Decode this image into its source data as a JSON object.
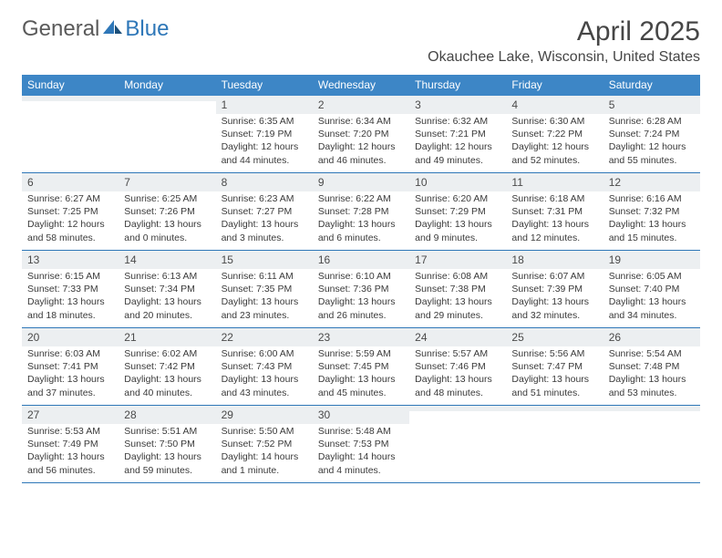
{
  "brand": {
    "part1": "General",
    "part2": "Blue"
  },
  "title": "April 2025",
  "location": "Okauchee Lake, Wisconsin, United States",
  "colors": {
    "header_bg": "#3d86c6",
    "rule": "#2e77b8",
    "daynum_bg": "#eceff1",
    "text": "#3a3a3a"
  },
  "day_labels": [
    "Sunday",
    "Monday",
    "Tuesday",
    "Wednesday",
    "Thursday",
    "Friday",
    "Saturday"
  ],
  "weeks": [
    [
      {
        "n": "",
        "sr": "",
        "ss": "",
        "dl": ""
      },
      {
        "n": "",
        "sr": "",
        "ss": "",
        "dl": ""
      },
      {
        "n": "1",
        "sr": "Sunrise: 6:35 AM",
        "ss": "Sunset: 7:19 PM",
        "dl": "Daylight: 12 hours and 44 minutes."
      },
      {
        "n": "2",
        "sr": "Sunrise: 6:34 AM",
        "ss": "Sunset: 7:20 PM",
        "dl": "Daylight: 12 hours and 46 minutes."
      },
      {
        "n": "3",
        "sr": "Sunrise: 6:32 AM",
        "ss": "Sunset: 7:21 PM",
        "dl": "Daylight: 12 hours and 49 minutes."
      },
      {
        "n": "4",
        "sr": "Sunrise: 6:30 AM",
        "ss": "Sunset: 7:22 PM",
        "dl": "Daylight: 12 hours and 52 minutes."
      },
      {
        "n": "5",
        "sr": "Sunrise: 6:28 AM",
        "ss": "Sunset: 7:24 PM",
        "dl": "Daylight: 12 hours and 55 minutes."
      }
    ],
    [
      {
        "n": "6",
        "sr": "Sunrise: 6:27 AM",
        "ss": "Sunset: 7:25 PM",
        "dl": "Daylight: 12 hours and 58 minutes."
      },
      {
        "n": "7",
        "sr": "Sunrise: 6:25 AM",
        "ss": "Sunset: 7:26 PM",
        "dl": "Daylight: 13 hours and 0 minutes."
      },
      {
        "n": "8",
        "sr": "Sunrise: 6:23 AM",
        "ss": "Sunset: 7:27 PM",
        "dl": "Daylight: 13 hours and 3 minutes."
      },
      {
        "n": "9",
        "sr": "Sunrise: 6:22 AM",
        "ss": "Sunset: 7:28 PM",
        "dl": "Daylight: 13 hours and 6 minutes."
      },
      {
        "n": "10",
        "sr": "Sunrise: 6:20 AM",
        "ss": "Sunset: 7:29 PM",
        "dl": "Daylight: 13 hours and 9 minutes."
      },
      {
        "n": "11",
        "sr": "Sunrise: 6:18 AM",
        "ss": "Sunset: 7:31 PM",
        "dl": "Daylight: 13 hours and 12 minutes."
      },
      {
        "n": "12",
        "sr": "Sunrise: 6:16 AM",
        "ss": "Sunset: 7:32 PM",
        "dl": "Daylight: 13 hours and 15 minutes."
      }
    ],
    [
      {
        "n": "13",
        "sr": "Sunrise: 6:15 AM",
        "ss": "Sunset: 7:33 PM",
        "dl": "Daylight: 13 hours and 18 minutes."
      },
      {
        "n": "14",
        "sr": "Sunrise: 6:13 AM",
        "ss": "Sunset: 7:34 PM",
        "dl": "Daylight: 13 hours and 20 minutes."
      },
      {
        "n": "15",
        "sr": "Sunrise: 6:11 AM",
        "ss": "Sunset: 7:35 PM",
        "dl": "Daylight: 13 hours and 23 minutes."
      },
      {
        "n": "16",
        "sr": "Sunrise: 6:10 AM",
        "ss": "Sunset: 7:36 PM",
        "dl": "Daylight: 13 hours and 26 minutes."
      },
      {
        "n": "17",
        "sr": "Sunrise: 6:08 AM",
        "ss": "Sunset: 7:38 PM",
        "dl": "Daylight: 13 hours and 29 minutes."
      },
      {
        "n": "18",
        "sr": "Sunrise: 6:07 AM",
        "ss": "Sunset: 7:39 PM",
        "dl": "Daylight: 13 hours and 32 minutes."
      },
      {
        "n": "19",
        "sr": "Sunrise: 6:05 AM",
        "ss": "Sunset: 7:40 PM",
        "dl": "Daylight: 13 hours and 34 minutes."
      }
    ],
    [
      {
        "n": "20",
        "sr": "Sunrise: 6:03 AM",
        "ss": "Sunset: 7:41 PM",
        "dl": "Daylight: 13 hours and 37 minutes."
      },
      {
        "n": "21",
        "sr": "Sunrise: 6:02 AM",
        "ss": "Sunset: 7:42 PM",
        "dl": "Daylight: 13 hours and 40 minutes."
      },
      {
        "n": "22",
        "sr": "Sunrise: 6:00 AM",
        "ss": "Sunset: 7:43 PM",
        "dl": "Daylight: 13 hours and 43 minutes."
      },
      {
        "n": "23",
        "sr": "Sunrise: 5:59 AM",
        "ss": "Sunset: 7:45 PM",
        "dl": "Daylight: 13 hours and 45 minutes."
      },
      {
        "n": "24",
        "sr": "Sunrise: 5:57 AM",
        "ss": "Sunset: 7:46 PM",
        "dl": "Daylight: 13 hours and 48 minutes."
      },
      {
        "n": "25",
        "sr": "Sunrise: 5:56 AM",
        "ss": "Sunset: 7:47 PM",
        "dl": "Daylight: 13 hours and 51 minutes."
      },
      {
        "n": "26",
        "sr": "Sunrise: 5:54 AM",
        "ss": "Sunset: 7:48 PM",
        "dl": "Daylight: 13 hours and 53 minutes."
      }
    ],
    [
      {
        "n": "27",
        "sr": "Sunrise: 5:53 AM",
        "ss": "Sunset: 7:49 PM",
        "dl": "Daylight: 13 hours and 56 minutes."
      },
      {
        "n": "28",
        "sr": "Sunrise: 5:51 AM",
        "ss": "Sunset: 7:50 PM",
        "dl": "Daylight: 13 hours and 59 minutes."
      },
      {
        "n": "29",
        "sr": "Sunrise: 5:50 AM",
        "ss": "Sunset: 7:52 PM",
        "dl": "Daylight: 14 hours and 1 minute."
      },
      {
        "n": "30",
        "sr": "Sunrise: 5:48 AM",
        "ss": "Sunset: 7:53 PM",
        "dl": "Daylight: 14 hours and 4 minutes."
      },
      {
        "n": "",
        "sr": "",
        "ss": "",
        "dl": ""
      },
      {
        "n": "",
        "sr": "",
        "ss": "",
        "dl": ""
      },
      {
        "n": "",
        "sr": "",
        "ss": "",
        "dl": ""
      }
    ]
  ]
}
